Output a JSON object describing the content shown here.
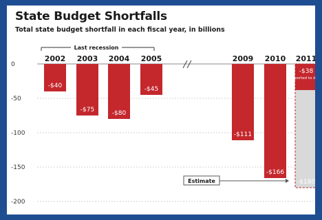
{
  "title": "State Budget Shortfalls",
  "subtitle": "Total state budget shortfall in each fiscal year, in billions",
  "recession_label": "Last recession",
  "estimate_label": "Estimate",
  "reported_note": "reported to date",
  "colors": {
    "frame_bg": "#1f4d92",
    "bar": "#c4272c",
    "estimate_fill": "#d9d9d9",
    "estimate_border": "#c4272c",
    "grid": "#d0d0d0"
  },
  "chart_data": {
    "type": "bar",
    "title": "State Budget Shortfalls",
    "subtitle": "Total state budget shortfall in each fiscal year, in billions",
    "categories": [
      "2002",
      "2003",
      "2004",
      "2005",
      "2009",
      "2010",
      "2011"
    ],
    "values": [
      -40,
      -75,
      -80,
      -45,
      -111,
      -166,
      -38
    ],
    "value_labels": [
      "-$40",
      "-$75",
      "-$80",
      "-$45",
      "-$111",
      "-$166",
      "-$38"
    ],
    "estimate": {
      "category": "2011",
      "value": -180,
      "label": "-$180"
    },
    "yticks": [
      0,
      -50,
      -100,
      -150,
      -200
    ],
    "ylim": [
      0,
      -200
    ],
    "grid": true,
    "axis_break_between": [
      "2005",
      "2009"
    ]
  }
}
